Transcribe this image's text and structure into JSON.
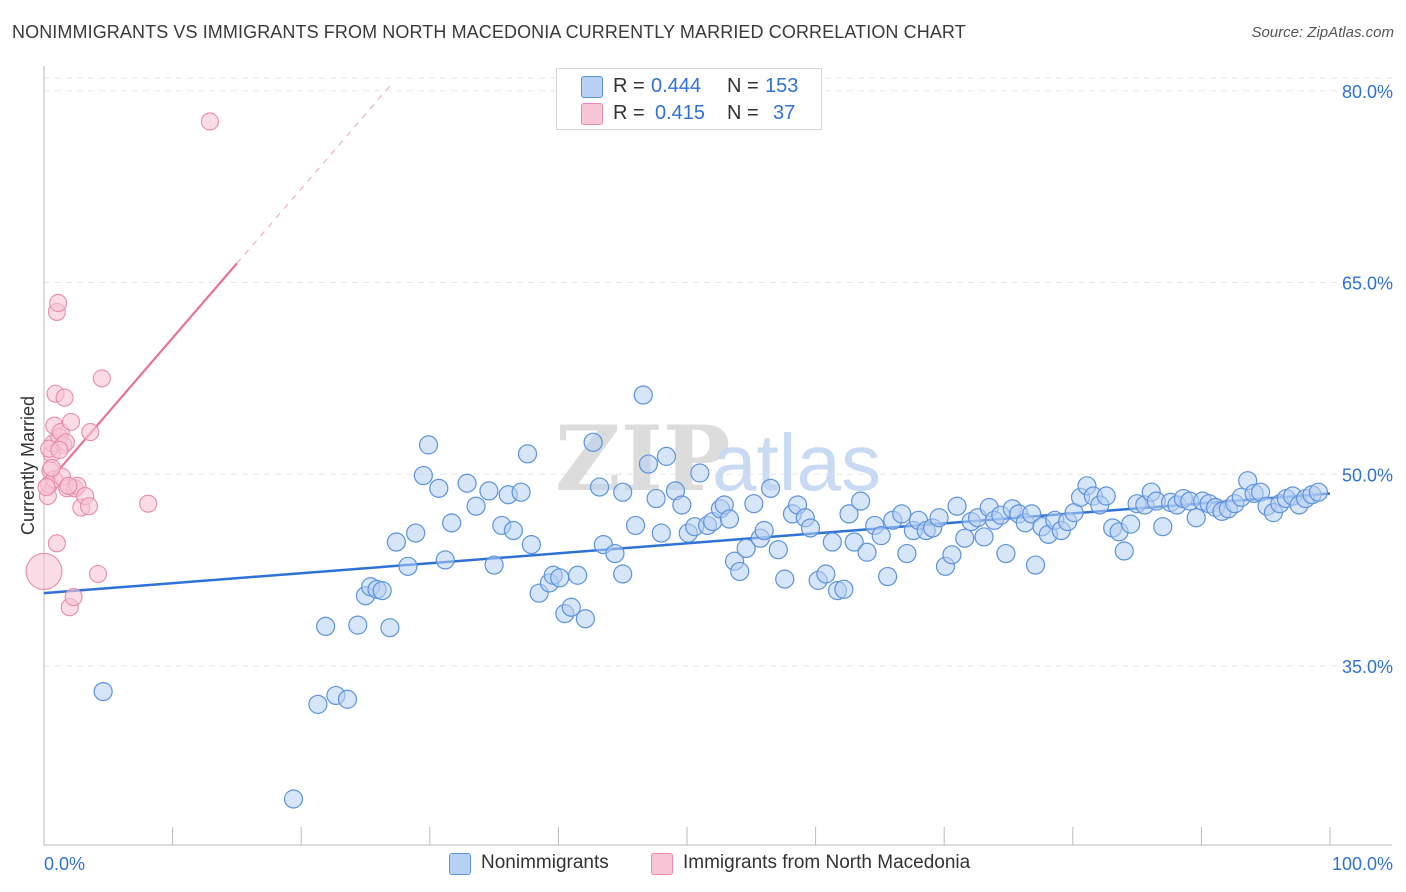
{
  "title": "NONIMMIGRANTS VS IMMIGRANTS FROM NORTH MACEDONIA CURRENTLY MARRIED CORRELATION CHART",
  "source": "Source: ZipAtlas.com",
  "watermark": {
    "zip": "ZIP",
    "atlas": "atlas"
  },
  "colors": {
    "blue": "#2f72d6",
    "blue_fill": "#b7d0f3",
    "blue_stroke": "#5b93de",
    "pink": "#e8719a",
    "pink_fill": "#f7c5d6",
    "pink_stroke": "#e98aaa",
    "grid": "#e6e6e6",
    "axis_label": "#2f72d6"
  },
  "legend": {
    "rows": [
      {
        "r_label": "R =",
        "r_value": "0.444",
        "n_label": "N =",
        "n_value": "153"
      },
      {
        "r_label": "R =",
        "r_value": "0.415",
        "n_label": "N =",
        "n_value": "37"
      }
    ]
  },
  "bottom_legend": {
    "series1": "Nonimmigrants",
    "series2": "Immigrants from North Macedonia"
  },
  "chart_data": {
    "type": "scatter",
    "title": "NONIMMIGRANTS VS IMMIGRANTS FROM NORTH MACEDONIA CURRENTLY MARRIED CORRELATION CHART",
    "xlabel": "",
    "ylabel": "Currently Married",
    "xlim": [
      0,
      100
    ],
    "ylim": [
      21,
      81
    ],
    "x_tick_labels": [
      "0.0%",
      "100.0%"
    ],
    "y_ticks": [
      35,
      50,
      65,
      80
    ],
    "y_tick_labels": [
      "35.0%",
      "50.0%",
      "65.0%",
      "80.0%"
    ],
    "grid": true,
    "series": [
      {
        "name": "Nonimmigrants",
        "r": 0.444,
        "n": 153,
        "trend": {
          "x": [
            0,
            100
          ],
          "y": [
            40.7,
            48.5
          ]
        },
        "points": [
          [
            4.6,
            33.0
          ],
          [
            19.4,
            24.6
          ],
          [
            21.3,
            32.0
          ],
          [
            21.9,
            38.1
          ],
          [
            22.7,
            32.7
          ],
          [
            23.6,
            32.4
          ],
          [
            24.4,
            38.2
          ],
          [
            25.0,
            40.5
          ],
          [
            25.4,
            41.2
          ],
          [
            25.9,
            41.0
          ],
          [
            26.3,
            40.9
          ],
          [
            26.9,
            38.0
          ],
          [
            27.4,
            44.7
          ],
          [
            28.3,
            42.8
          ],
          [
            28.9,
            45.4
          ],
          [
            29.5,
            49.9
          ],
          [
            29.9,
            52.3
          ],
          [
            30.7,
            48.9
          ],
          [
            31.2,
            43.3
          ],
          [
            31.7,
            46.2
          ],
          [
            32.9,
            49.3
          ],
          [
            33.6,
            47.5
          ],
          [
            34.6,
            48.7
          ],
          [
            35.0,
            42.9
          ],
          [
            35.6,
            46.0
          ],
          [
            36.1,
            48.4
          ],
          [
            36.5,
            45.6
          ],
          [
            37.1,
            48.6
          ],
          [
            37.6,
            51.6
          ],
          [
            37.9,
            44.5
          ],
          [
            38.5,
            40.7
          ],
          [
            39.3,
            41.5
          ],
          [
            39.6,
            42.1
          ],
          [
            40.1,
            41.9
          ],
          [
            40.5,
            39.1
          ],
          [
            41.0,
            39.6
          ],
          [
            41.5,
            42.1
          ],
          [
            42.1,
            38.7
          ],
          [
            42.7,
            52.5
          ],
          [
            43.2,
            49.0
          ],
          [
            43.5,
            44.5
          ],
          [
            44.4,
            43.8
          ],
          [
            45.0,
            48.6
          ],
          [
            45.0,
            42.2
          ],
          [
            46.0,
            46.0
          ],
          [
            46.6,
            56.2
          ],
          [
            47.0,
            50.8
          ],
          [
            47.6,
            48.1
          ],
          [
            48.0,
            45.4
          ],
          [
            48.4,
            51.4
          ],
          [
            49.1,
            48.7
          ],
          [
            49.6,
            47.6
          ],
          [
            50.1,
            45.4
          ],
          [
            50.6,
            45.9
          ],
          [
            51.0,
            50.1
          ],
          [
            51.6,
            46.0
          ],
          [
            52.0,
            46.3
          ],
          [
            52.6,
            47.3
          ],
          [
            52.9,
            47.6
          ],
          [
            53.3,
            46.5
          ],
          [
            53.7,
            43.2
          ],
          [
            54.1,
            42.4
          ],
          [
            54.6,
            44.2
          ],
          [
            55.2,
            47.7
          ],
          [
            55.7,
            45.0
          ],
          [
            56.0,
            45.6
          ],
          [
            56.5,
            48.9
          ],
          [
            57.1,
            44.1
          ],
          [
            57.6,
            41.8
          ],
          [
            58.2,
            46.9
          ],
          [
            58.6,
            47.6
          ],
          [
            59.2,
            46.6
          ],
          [
            59.6,
            45.8
          ],
          [
            60.2,
            41.7
          ],
          [
            60.8,
            42.2
          ],
          [
            61.3,
            44.7
          ],
          [
            61.7,
            40.9
          ],
          [
            62.2,
            41.0
          ],
          [
            62.6,
            46.9
          ],
          [
            63.0,
            44.7
          ],
          [
            63.5,
            47.9
          ],
          [
            64.0,
            43.9
          ],
          [
            64.6,
            46.0
          ],
          [
            65.1,
            45.2
          ],
          [
            65.6,
            42.0
          ],
          [
            66.0,
            46.4
          ],
          [
            66.7,
            46.9
          ],
          [
            67.1,
            43.8
          ],
          [
            67.6,
            45.6
          ],
          [
            68.0,
            46.4
          ],
          [
            68.6,
            45.6
          ],
          [
            69.1,
            45.8
          ],
          [
            69.6,
            46.6
          ],
          [
            70.1,
            42.8
          ],
          [
            70.6,
            43.7
          ],
          [
            71.0,
            47.5
          ],
          [
            71.6,
            45.0
          ],
          [
            72.1,
            46.3
          ],
          [
            72.6,
            46.6
          ],
          [
            73.1,
            45.1
          ],
          [
            73.5,
            47.4
          ],
          [
            73.9,
            46.4
          ],
          [
            74.4,
            46.8
          ],
          [
            74.8,
            43.8
          ],
          [
            75.3,
            47.3
          ],
          [
            75.8,
            46.9
          ],
          [
            76.3,
            46.2
          ],
          [
            76.8,
            46.9
          ],
          [
            77.1,
            42.9
          ],
          [
            77.6,
            45.9
          ],
          [
            78.1,
            45.3
          ],
          [
            78.6,
            46.4
          ],
          [
            79.1,
            45.6
          ],
          [
            79.6,
            46.3
          ],
          [
            80.1,
            47.0
          ],
          [
            80.6,
            48.2
          ],
          [
            81.1,
            49.1
          ],
          [
            81.6,
            48.3
          ],
          [
            82.1,
            47.6
          ],
          [
            82.6,
            48.3
          ],
          [
            83.1,
            45.8
          ],
          [
            83.6,
            45.5
          ],
          [
            84.0,
            44.0
          ],
          [
            84.5,
            46.1
          ],
          [
            85.0,
            47.7
          ],
          [
            85.6,
            47.6
          ],
          [
            86.1,
            48.6
          ],
          [
            86.5,
            47.9
          ],
          [
            87.0,
            45.9
          ],
          [
            87.6,
            47.8
          ],
          [
            88.1,
            47.6
          ],
          [
            88.6,
            48.1
          ],
          [
            89.1,
            47.9
          ],
          [
            89.6,
            46.6
          ],
          [
            90.1,
            47.9
          ],
          [
            90.6,
            47.7
          ],
          [
            91.1,
            47.4
          ],
          [
            91.6,
            47.1
          ],
          [
            92.1,
            47.3
          ],
          [
            92.6,
            47.7
          ],
          [
            93.1,
            48.2
          ],
          [
            93.6,
            49.5
          ],
          [
            94.1,
            48.5
          ],
          [
            94.6,
            48.6
          ],
          [
            95.1,
            47.5
          ],
          [
            95.6,
            47.0
          ],
          [
            96.1,
            47.7
          ],
          [
            96.6,
            48.1
          ],
          [
            97.1,
            48.3
          ],
          [
            97.6,
            47.6
          ],
          [
            98.1,
            48.1
          ],
          [
            98.6,
            48.4
          ],
          [
            99.1,
            48.6
          ]
        ]
      },
      {
        "name": "Immigrants from North Macedonia",
        "r": 0.415,
        "n": 37,
        "trend": {
          "x": [
            0,
            15
          ],
          "y": [
            49.0,
            66.5
          ],
          "dashed_extension": {
            "x": [
              15,
              27
            ],
            "y": [
              66.5,
              80.5
            ]
          }
        },
        "points": [
          [
            0.0,
            42.4
          ],
          [
            0.3,
            48.3
          ],
          [
            0.4,
            49.2
          ],
          [
            0.5,
            50.3
          ],
          [
            0.6,
            51.6
          ],
          [
            0.7,
            52.4
          ],
          [
            0.8,
            53.8
          ],
          [
            0.8,
            49.6
          ],
          [
            0.9,
            56.3
          ],
          [
            1.0,
            62.7
          ],
          [
            1.1,
            63.4
          ],
          [
            1.2,
            52.9
          ],
          [
            1.3,
            53.3
          ],
          [
            1.4,
            49.8
          ],
          [
            1.5,
            52.3
          ],
          [
            1.6,
            56.0
          ],
          [
            1.7,
            52.5
          ],
          [
            1.8,
            48.9
          ],
          [
            2.0,
            39.6
          ],
          [
            2.1,
            54.1
          ],
          [
            2.3,
            40.4
          ],
          [
            2.4,
            48.9
          ],
          [
            2.6,
            49.1
          ],
          [
            2.9,
            47.4
          ],
          [
            3.2,
            48.3
          ],
          [
            3.5,
            47.5
          ],
          [
            3.6,
            53.3
          ],
          [
            4.2,
            42.2
          ],
          [
            4.5,
            57.5
          ],
          [
            8.1,
            47.7
          ],
          [
            12.9,
            77.6
          ],
          [
            0.2,
            49.0
          ],
          [
            0.4,
            52.0
          ],
          [
            1.0,
            44.6
          ],
          [
            1.2,
            51.9
          ],
          [
            0.6,
            50.5
          ],
          [
            1.9,
            49.1
          ]
        ]
      }
    ]
  }
}
